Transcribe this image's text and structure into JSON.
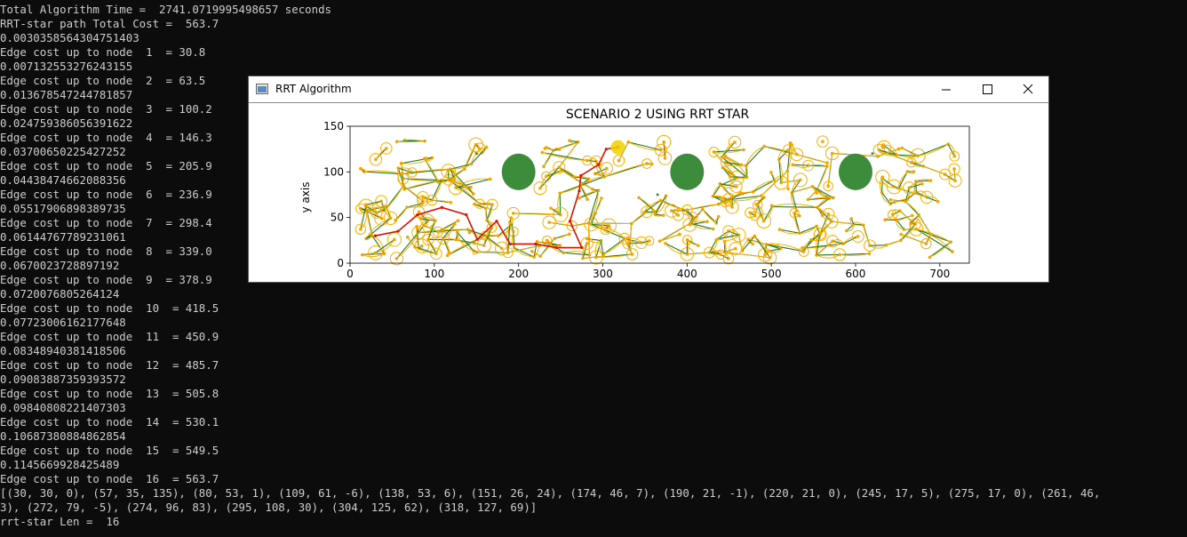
{
  "console": {
    "lines": [
      "Total Algorithm Time =  2741.0719995498657 seconds",
      "RRT-star path Total Cost =  563.7",
      "0.0030358564304751403",
      "Edge cost up to node  1  = 30.8",
      "0.007132553276243155",
      "Edge cost up to node  2  = 63.5",
      "0.013678547244781857",
      "Edge cost up to node  3  = 100.2",
      "0.024759386056391622",
      "Edge cost up to node  4  = 146.3",
      "0.03700650225427252",
      "Edge cost up to node  5  = 205.9",
      "0.04438474662088356",
      "Edge cost up to node  6  = 236.9",
      "0.05517906898389735",
      "Edge cost up to node  7  = 298.4",
      "0.06144767789231061",
      "Edge cost up to node  8  = 339.0",
      "0.0670023728897192",
      "Edge cost up to node  9  = 378.9",
      "0.0720076805264124",
      "Edge cost up to node  10  = 418.5",
      "0.07723006162177648",
      "Edge cost up to node  11  = 450.9",
      "0.08348940381418506",
      "Edge cost up to node  12  = 485.7",
      "0.09083887359393572",
      "Edge cost up to node  13  = 505.8",
      "0.09840808221407303",
      "Edge cost up to node  14  = 530.1",
      "0.10687380884862854",
      "Edge cost up to node  15  = 549.5",
      "0.1145669928425489",
      "Edge cost up to node  16  = 563.7",
      "[(30, 30, 0), (57, 35, 135), (80, 53, 1), (109, 61, -6), (138, 53, 6), (151, 26, 24), (174, 46, 7), (190, 21, -1), (220, 21, 0), (245, 17, 5), (275, 17, 0), (261, 46,",
      "3), (272, 79, -5), (274, 96, 83), (295, 108, 30), (304, 125, 62), (318, 127, 69)]",
      "rrt-star Len =  16"
    ]
  },
  "window": {
    "title": "RRT Algorithm",
    "minimize_icon": "minimize-icon",
    "maximize_icon": "maximize-icon",
    "close_icon": "close-icon",
    "app_icon": "window-app-icon"
  },
  "chart_data": {
    "type": "scatter",
    "title": "SCENARIO 2 USING RRT STAR",
    "xlabel": "",
    "ylabel": "y axis",
    "xlim": [
      0,
      735
    ],
    "ylim": [
      0,
      150
    ],
    "xticks": [
      0,
      100,
      200,
      300,
      400,
      500,
      600,
      700
    ],
    "yticks": [
      0,
      50,
      100,
      150
    ],
    "grid": false,
    "colors": {
      "obstacle": "#3c8c3c",
      "tree_edges": "#1e7a1e",
      "rewire_arcs": "#ffae00",
      "nodes": "#f5a500",
      "final_path": "#dd1100",
      "goal": "#f0d000"
    },
    "obstacles": [
      {
        "x": 200,
        "y": 100,
        "r": 20
      },
      {
        "x": 400,
        "y": 100,
        "r": 20
      },
      {
        "x": 600,
        "y": 100,
        "r": 20
      }
    ],
    "goal": {
      "x": 318,
      "y": 127
    },
    "final_path": [
      {
        "x": 30,
        "y": 30
      },
      {
        "x": 57,
        "y": 35
      },
      {
        "x": 80,
        "y": 53
      },
      {
        "x": 109,
        "y": 61
      },
      {
        "x": 138,
        "y": 53
      },
      {
        "x": 151,
        "y": 26
      },
      {
        "x": 174,
        "y": 46
      },
      {
        "x": 190,
        "y": 21
      },
      {
        "x": 220,
        "y": 21
      },
      {
        "x": 245,
        "y": 17
      },
      {
        "x": 275,
        "y": 17
      },
      {
        "x": 261,
        "y": 46
      },
      {
        "x": 272,
        "y": 79
      },
      {
        "x": 274,
        "y": 96
      },
      {
        "x": 295,
        "y": 108
      },
      {
        "x": 304,
        "y": 125
      },
      {
        "x": 318,
        "y": 127
      }
    ]
  }
}
